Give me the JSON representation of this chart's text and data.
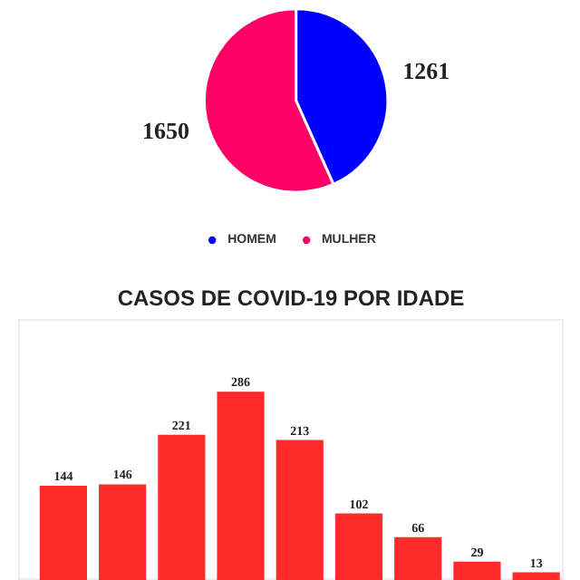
{
  "chart_data": [
    {
      "type": "pie",
      "categories": [
        "HOMEM",
        "MULHER"
      ],
      "values": [
        1261,
        1650
      ],
      "colors": [
        "#0000ff",
        "#ff0066"
      ],
      "data_labels": true,
      "legend": "bottom"
    },
    {
      "type": "bar",
      "title": "CASOS DE COVID-19 POR IDADE",
      "categories": [
        null,
        null,
        null,
        null,
        null,
        null,
        null,
        null,
        null
      ],
      "values": [
        144,
        146,
        221,
        286,
        213,
        102,
        66,
        29,
        13
      ],
      "color": "#ff2a2a",
      "data_labels": true
    }
  ]
}
